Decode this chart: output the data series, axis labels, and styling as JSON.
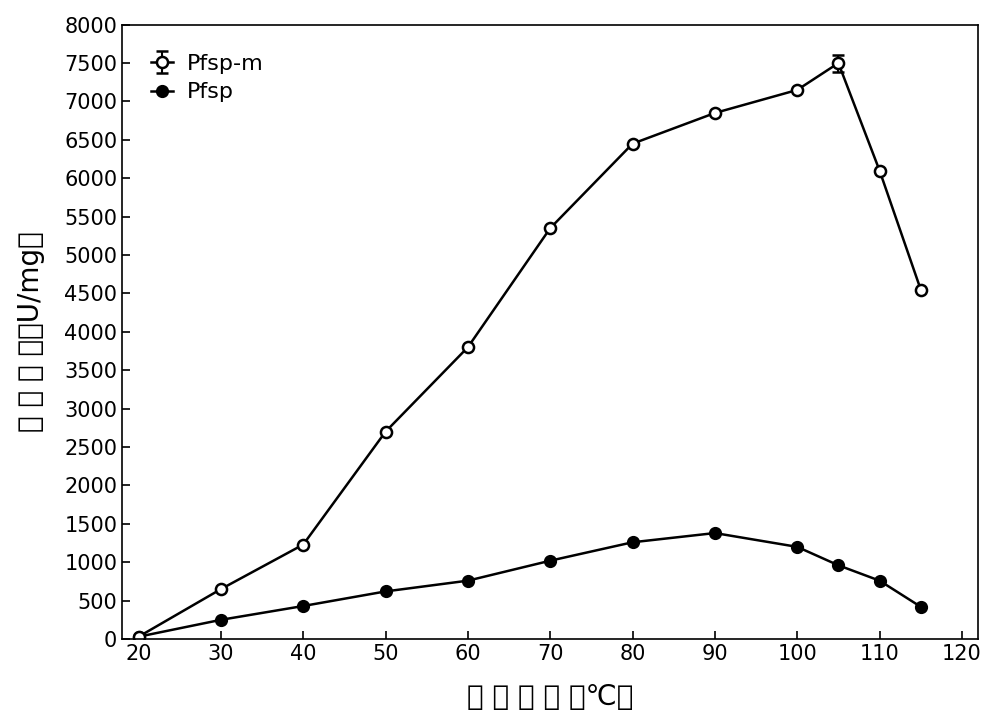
{
  "pfsp_x": [
    20,
    30,
    40,
    50,
    60,
    70,
    80,
    90,
    100,
    105,
    110,
    115
  ],
  "pfsp_y": [
    30,
    250,
    430,
    620,
    760,
    1020,
    1260,
    1380,
    1200,
    960,
    760,
    420
  ],
  "pfsp_m_x": [
    20,
    30,
    40,
    50,
    60,
    70,
    80,
    90,
    100,
    105,
    110,
    115
  ],
  "pfsp_m_y": [
    30,
    650,
    1230,
    2700,
    3800,
    5350,
    6450,
    6850,
    7150,
    7500,
    6100,
    4550
  ],
  "pfsp_color": "#000000",
  "pfsp_m_color": "#000000",
  "xlabel": "反 应 温 度 （℃）",
  "ylabel_chars": [
    "绝",
    " ",
    "对",
    " ",
    "酶",
    " ",
    "活",
    "（U/mg）"
  ],
  "ylabel_vertical": "绝 对 酶 活（U/mg）",
  "xlim": [
    18,
    122
  ],
  "ylim": [
    0,
    8000
  ],
  "xticks": [
    20,
    30,
    40,
    50,
    60,
    70,
    80,
    90,
    100,
    110,
    120
  ],
  "yticks": [
    0,
    500,
    1000,
    1500,
    2000,
    2500,
    3000,
    3500,
    4000,
    4500,
    5000,
    5500,
    6000,
    6500,
    7000,
    7500,
    8000
  ],
  "legend_pfsp": "Pfsp",
  "legend_pfsp_m": "Pfsp-m",
  "background_color": "#ffffff",
  "line_color": "#000000",
  "line_width": 1.8,
  "marker_size": 8,
  "xlabel_fontsize": 20,
  "ylabel_fontsize": 20,
  "tick_fontsize": 15,
  "legend_fontsize": 16,
  "error_bar_pfsp_m_105": 110
}
